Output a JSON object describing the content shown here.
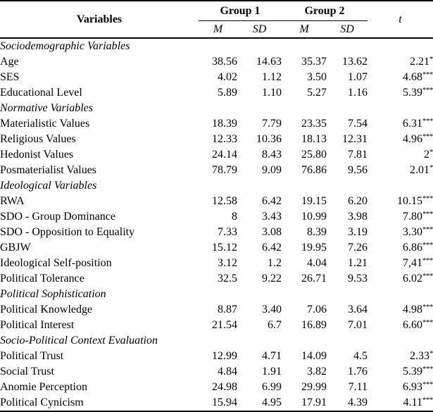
{
  "table": {
    "header": {
      "variables": "Variables",
      "group1": "Group 1",
      "group2": "Group 2",
      "m": "M",
      "sd": "SD",
      "t": "t"
    },
    "sections": [
      {
        "title": "Sociodemographic Variables",
        "rows": [
          {
            "label": "Age",
            "m1": "38.56",
            "sd1": "14.63",
            "m2": "35.37",
            "sd2": "13.62",
            "t": "2.21",
            "stars": "*"
          },
          {
            "label": "SES",
            "m1": "4.02",
            "sd1": "1.12",
            "m2": "3.50",
            "sd2": "1.07",
            "t": "4.68",
            "stars": "***"
          },
          {
            "label": "Educational Level",
            "m1": "5.89",
            "sd1": "1.10",
            "m2": "5.27",
            "sd2": "1.16",
            "t": "5.39",
            "stars": "***"
          }
        ]
      },
      {
        "title": "Normative Variables",
        "rows": [
          {
            "label": "Materialistic Values",
            "m1": "18.39",
            "sd1": "7.79",
            "m2": "23.35",
            "sd2": "7.54",
            "t": "6.31",
            "stars": "***"
          },
          {
            "label": "Religious Values",
            "m1": "12.33",
            "sd1": "10.36",
            "m2": "18.13",
            "sd2": "12.31",
            "t": "4.96",
            "stars": "***"
          },
          {
            "label": "Hedonist Values",
            "m1": "24.14",
            "sd1": "8.43",
            "m2": "25.80",
            "sd2": "7.81",
            "t": "2",
            "stars": "*"
          },
          {
            "label": "Posmaterialist Values",
            "m1": "78.79",
            "sd1": "9.09",
            "m2": "76.86",
            "sd2": "9.56",
            "t": "2.01",
            "stars": "*"
          }
        ]
      },
      {
        "title": "Ideological Variables",
        "rows": [
          {
            "label": "RWA",
            "m1": "12.58",
            "sd1": "6.42",
            "m2": "19.15",
            "sd2": "6.20",
            "t": "10.15",
            "stars": "***"
          },
          {
            "label": "SDO - Group Dominance",
            "m1": "8",
            "sd1": "3.43",
            "m2": "10.99",
            "sd2": "3.98",
            "t": "7.80",
            "stars": "***"
          },
          {
            "label": "SDO - Opposition to Equality",
            "m1": "7.33",
            "sd1": "3.08",
            "m2": "8.39",
            "sd2": "3.19",
            "t": "3.30",
            "stars": "***"
          },
          {
            "label": "GBJW",
            "m1": "15.12",
            "sd1": "6.42",
            "m2": "19.95",
            "sd2": "7.26",
            "t": "6.86",
            "stars": "***"
          },
          {
            "label": "Ideological Self-position",
            "m1": "3.12",
            "sd1": "1.2",
            "m2": "4.04",
            "sd2": "1.21",
            "t": "7,41",
            "stars": "***"
          },
          {
            "label": "Political Tolerance",
            "m1": "32.5",
            "sd1": "9.22",
            "m2": "26.71",
            "sd2": "9.53",
            "t": "6.02",
            "stars": "***"
          }
        ]
      },
      {
        "title": "Political Sophistication",
        "rows": [
          {
            "label": "Political Knowledge",
            "m1": "8.87",
            "sd1": "3.40",
            "m2": "7.06",
            "sd2": "3.64",
            "t": "4.98",
            "stars": "***"
          },
          {
            "label": "Political Interest",
            "m1": "21.54",
            "sd1": "6.7",
            "m2": "16.89",
            "sd2": "7.01",
            "t": "6.60",
            "stars": "***"
          }
        ]
      },
      {
        "title": "Socio-Political Context Evaluation",
        "rows": [
          {
            "label": "Political Trust",
            "m1": "12.99",
            "sd1": "4.71",
            "m2": "14.09",
            "sd2": "4.5",
            "t": "2.33",
            "stars": "*"
          },
          {
            "label": "Social Trust",
            "m1": "4.84",
            "sd1": "1.91",
            "m2": "3.82",
            "sd2": "1.76",
            "t": "5.39",
            "stars": "***"
          },
          {
            "label": "Anomie Perception",
            "m1": "24.98",
            "sd1": "6.99",
            "m2": "29.99",
            "sd2": "7.11",
            "t": "6.93",
            "stars": "***"
          },
          {
            "label": "Political Cynicism",
            "m1": "15.94",
            "sd1": "4.95",
            "m2": "17.91",
            "sd2": "4.39",
            "t": "4.11",
            "stars": "***"
          }
        ]
      }
    ]
  }
}
